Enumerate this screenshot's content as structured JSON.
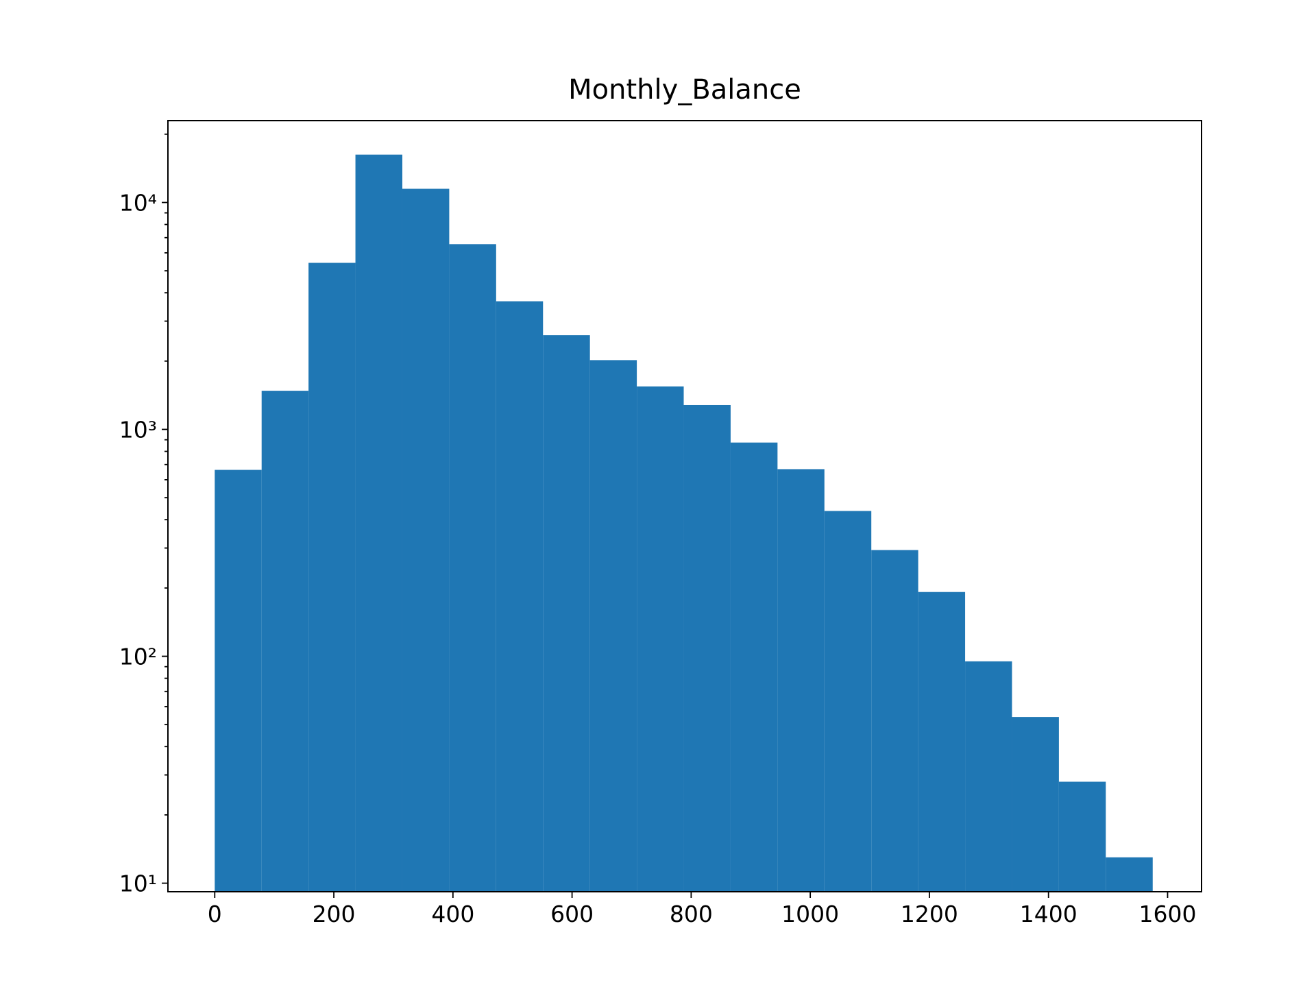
{
  "chart_data": {
    "type": "histogram",
    "title": "Monthly_Balance",
    "bins": [
      0,
      78.75,
      157.5,
      236.25,
      315,
      393.75,
      472.5,
      551.25,
      630,
      708.75,
      787.5,
      866.25,
      945,
      1023.75,
      1102.5,
      1181.25,
      1260,
      1338.75,
      1417.5,
      1496.25,
      1575
    ],
    "values": [
      663,
      1480,
      5420,
      16250,
      11490,
      6550,
      3670,
      2600,
      2020,
      1547,
      1280,
      875,
      668,
      437,
      294,
      192,
      95,
      54,
      28,
      13
    ],
    "color": "#1f77b4",
    "xlim": [
      -78.6,
      1657
    ],
    "xticks": [
      0,
      200,
      400,
      600,
      800,
      1000,
      1200,
      1400,
      1600
    ],
    "ylim": [
      9.17,
      22950
    ],
    "yscale": "log",
    "yticks": [
      {
        "value": 10,
        "label": "10¹"
      },
      {
        "value": 100,
        "label": "10²"
      },
      {
        "value": 1000,
        "label": "10³"
      },
      {
        "value": 10000,
        "label": "10⁴"
      }
    ],
    "yticks_minor": [
      20,
      30,
      40,
      50,
      60,
      70,
      80,
      90,
      200,
      300,
      400,
      500,
      600,
      700,
      800,
      900,
      2000,
      3000,
      4000,
      5000,
      6000,
      7000,
      8000,
      9000,
      20000
    ],
    "grid": false
  }
}
